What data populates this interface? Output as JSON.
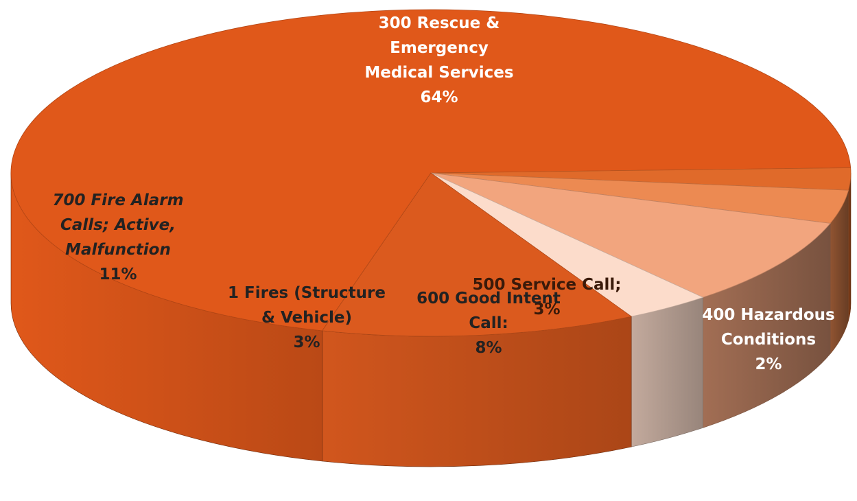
{
  "chart_data": {
    "type": "pie",
    "style": "3d",
    "categories": [
      "300 Rescue & Emergency Medical Services",
      "400 Hazardous Conditions",
      "500 Service Call;",
      "600 Good Intent Call:",
      "1 Fires (Structure & Vehicle)",
      "700 Fire Alarm Calls; Active, Malfunction"
    ],
    "values": [
      64,
      2,
      3,
      8,
      3,
      11
    ],
    "percent_labels": [
      "64%",
      "2%",
      "3%",
      "8%",
      "3%",
      "11%"
    ],
    "colors": [
      "#e0581a",
      "#e06a2a",
      "#ec8a52",
      "#f2a57e",
      "#fcdccb",
      "#db5a1e"
    ],
    "label_lines": [
      [
        "300 Rescue &",
        "Emergency",
        "Medical Services",
        "64%"
      ],
      [
        "400 Hazardous",
        "Conditions",
        "2%"
      ],
      [
        "500 Service Call;",
        "3%"
      ],
      [
        "600 Good Intent",
        "Call:",
        "8%"
      ],
      [
        "1 Fires (Structure",
        "& Vehicle)",
        "3%"
      ],
      [
        "700 Fire Alarm",
        "Calls; Active,",
        "Malfunction",
        "11%"
      ]
    ],
    "title": "",
    "legend": "none"
  }
}
